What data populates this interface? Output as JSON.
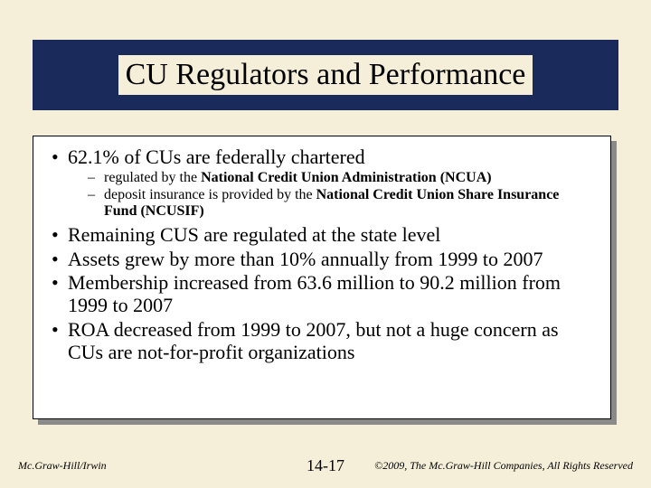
{
  "title": "CU Regulators and Performance",
  "bullets": {
    "b1": "62.1% of CUs are federally chartered",
    "b1_sub1_pre": "regulated by the ",
    "b1_sub1_bold": "National Credit Union Administration (NCUA)",
    "b1_sub2_pre": "deposit insurance is provided by the ",
    "b1_sub2_bold": "National Credit Union Share Insurance Fund (NCUSIF)",
    "b2": "Remaining CUS are regulated at the state level",
    "b3": "Assets grew by more than 10% annually from 1999 to 2007",
    "b4": "Membership increased from 63.6 million to 90.2 million from 1999 to 2007",
    "b5": "ROA decreased from 1999 to 2007, but not a huge concern as CUs are not-for-profit organizations"
  },
  "footer": {
    "left": "Mc.Graw-Hill/Irwin",
    "center": "14-17",
    "right": "©2009, The Mc.Graw-Hill Companies, All Rights Reserved"
  },
  "colors": {
    "slide_bg": "#f5eed8",
    "title_bar_bg": "#1a2a5a",
    "content_bg": "#ffffff",
    "shadow_bg": "#8a8a8a",
    "text": "#000000"
  },
  "fonts": {
    "title_size": 34,
    "bullet_size": 22,
    "sub_bullet_size": 16,
    "footer_size": 12,
    "page_num_size": 18,
    "family": "Times New Roman"
  }
}
